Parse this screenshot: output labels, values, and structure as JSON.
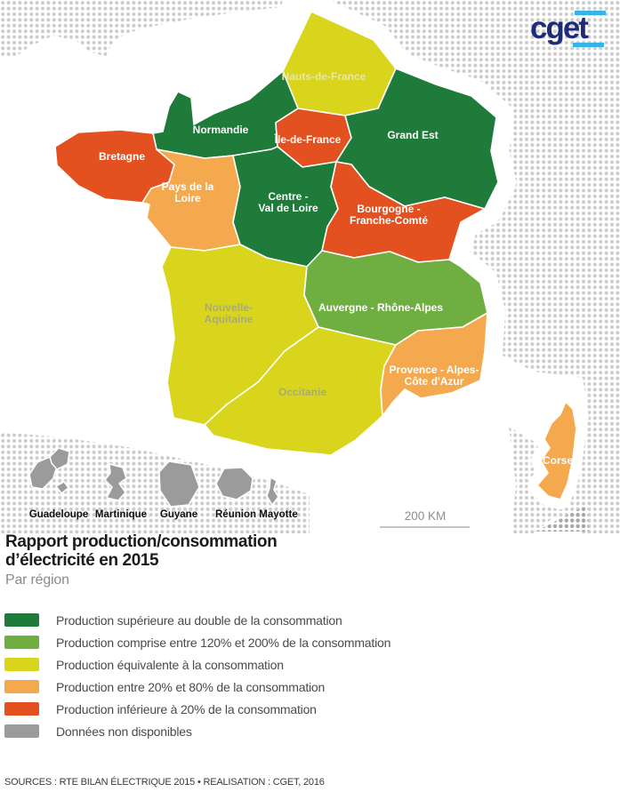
{
  "logo": {
    "text": "cget",
    "navy": "#1e2b7b",
    "cyan": "#35b4e5"
  },
  "title": {
    "line1": "Rapport production/consommation",
    "line2": "d’électricité en 2015",
    "subtitle": "Par région"
  },
  "source": "SOURCES : RTE BILAN ÉLECTRIQUE 2015 • REALISATION : CGET, 2016",
  "map": {
    "scale_label": "200 KM",
    "colors": {
      "prod_double": "#1e7b3a",
      "prod_120_200": "#6faf41",
      "prod_equiv": "#d8d51c",
      "prod_20_80": "#f5a94e",
      "prod_inf_20": "#e2511f",
      "no_data": "#9b9b9b",
      "bg_dot": "#cdcdcd",
      "bg_dot_dark": "#a6a6a6",
      "sea": "#ffffff"
    },
    "regions": [
      {
        "id": "hauts-de-france",
        "name": "Hauts-de-France",
        "category": "prod_equiv",
        "label_color": "#e9e6a0",
        "label_lines": [
          "Hauts-de-France"
        ]
      },
      {
        "id": "normandie",
        "name": "Normandie",
        "category": "prod_double",
        "label_color": "#ffffff",
        "label_lines": [
          "Normandie"
        ]
      },
      {
        "id": "ile-de-france",
        "name": "Île-de-France",
        "category": "prod_inf_20",
        "label_color": "#ffffff",
        "label_lines": [
          "Île-de-France"
        ]
      },
      {
        "id": "grand-est",
        "name": "Grand Est",
        "category": "prod_double",
        "label_color": "#ffffff",
        "label_lines": [
          "Grand Est"
        ]
      },
      {
        "id": "bretagne",
        "name": "Bretagne",
        "category": "prod_inf_20",
        "label_color": "#ffffff",
        "label_lines": [
          "Bretagne"
        ]
      },
      {
        "id": "pays-de-la-loire",
        "name": "Pays de la Loire",
        "category": "prod_20_80",
        "label_color": "#ffffff",
        "label_lines": [
          "Pays de la",
          "Loire"
        ]
      },
      {
        "id": "centre-val-de-loire",
        "name": "Centre - Val de Loire",
        "category": "prod_double",
        "label_color": "#ffffff",
        "label_lines": [
          "Centre -",
          "Val de Loire"
        ]
      },
      {
        "id": "bourgogne-franche-comte",
        "name": "Bourgogne - Franche-Comté",
        "category": "prod_inf_20",
        "label_color": "#ffffff",
        "label_lines": [
          "Bourgogne -",
          "Franche-Comté"
        ]
      },
      {
        "id": "nouvelle-aquitaine",
        "name": "Nouvelle-Aquitaine",
        "category": "prod_equiv",
        "label_color": "#a9aa7c",
        "label_lines": [
          "Nouvelle-",
          "Aquitaine"
        ]
      },
      {
        "id": "auvergne-rhone-alpes",
        "name": "Auvergne - Rhône-Alpes",
        "category": "prod_120_200",
        "label_color": "#ffffff",
        "label_lines": [
          "Auvergne - Rhône-Alpes"
        ]
      },
      {
        "id": "occitanie",
        "name": "Occitanie",
        "category": "prod_equiv",
        "label_color": "#a9aa7c",
        "label_lines": [
          "Occitanie"
        ]
      },
      {
        "id": "provence-alpes-cote-d-azur",
        "name": "Provence - Alpes-Côte d'Azur",
        "category": "prod_20_80",
        "label_color": "#ffffff",
        "label_lines": [
          "Provence - Alpes-",
          "Côte d'Azur"
        ]
      },
      {
        "id": "corse",
        "name": "Corse",
        "category": "prod_20_80",
        "label_color": "#ffffff",
        "label_lines": [
          "Corse"
        ]
      }
    ],
    "overseas": [
      {
        "id": "guadeloupe",
        "name": "Guadeloupe",
        "category": "no_data"
      },
      {
        "id": "martinique",
        "name": "Martinique",
        "category": "no_data"
      },
      {
        "id": "guyane",
        "name": "Guyane",
        "category": "no_data"
      },
      {
        "id": "reunion",
        "name": "Réunion",
        "category": "no_data"
      },
      {
        "id": "mayotte",
        "name": "Mayotte",
        "category": "no_data"
      }
    ]
  },
  "legend": {
    "items": [
      {
        "category": "prod_double",
        "label": "Production supérieure au double de la consommation"
      },
      {
        "category": "prod_120_200",
        "label": "Production comprise entre 120% et 200% de la consommation"
      },
      {
        "category": "prod_equiv",
        "label": "Production équivalente à la consommation"
      },
      {
        "category": "prod_20_80",
        "label": "Production entre 20% et 80% de la consommation"
      },
      {
        "category": "prod_inf_20",
        "label": "Production inférieure à 20% de la consommation"
      },
      {
        "category": "no_data",
        "label": "Données non disponibles"
      }
    ]
  }
}
